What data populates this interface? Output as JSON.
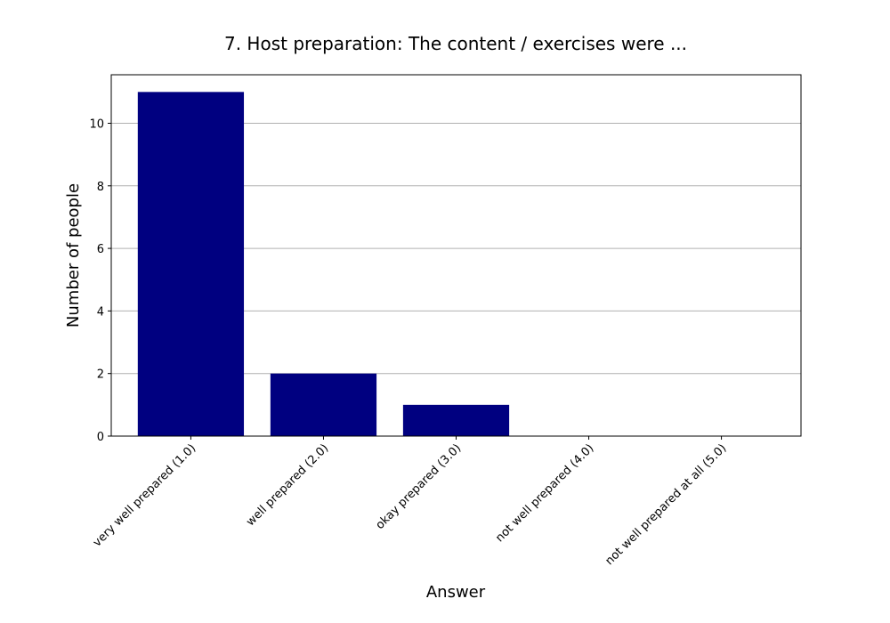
{
  "chart_data": {
    "type": "bar",
    "title": "7. Host preparation: The content / exercises were ...",
    "xlabel": "Answer",
    "ylabel": "Number of people",
    "categories": [
      "very well prepared (1.0)",
      "well prepared (2.0)",
      "okay prepared (3.0)",
      "not well prepared (4.0)",
      "not well prepared at all (5.0)"
    ],
    "values": [
      11,
      2,
      1,
      0,
      0
    ],
    "ylim": [
      0,
      11.55
    ],
    "yticks": [
      0,
      2,
      4,
      6,
      8,
      10
    ],
    "grid": "y",
    "bar_color": "#000080",
    "grid_color": "#b0b0b0"
  }
}
